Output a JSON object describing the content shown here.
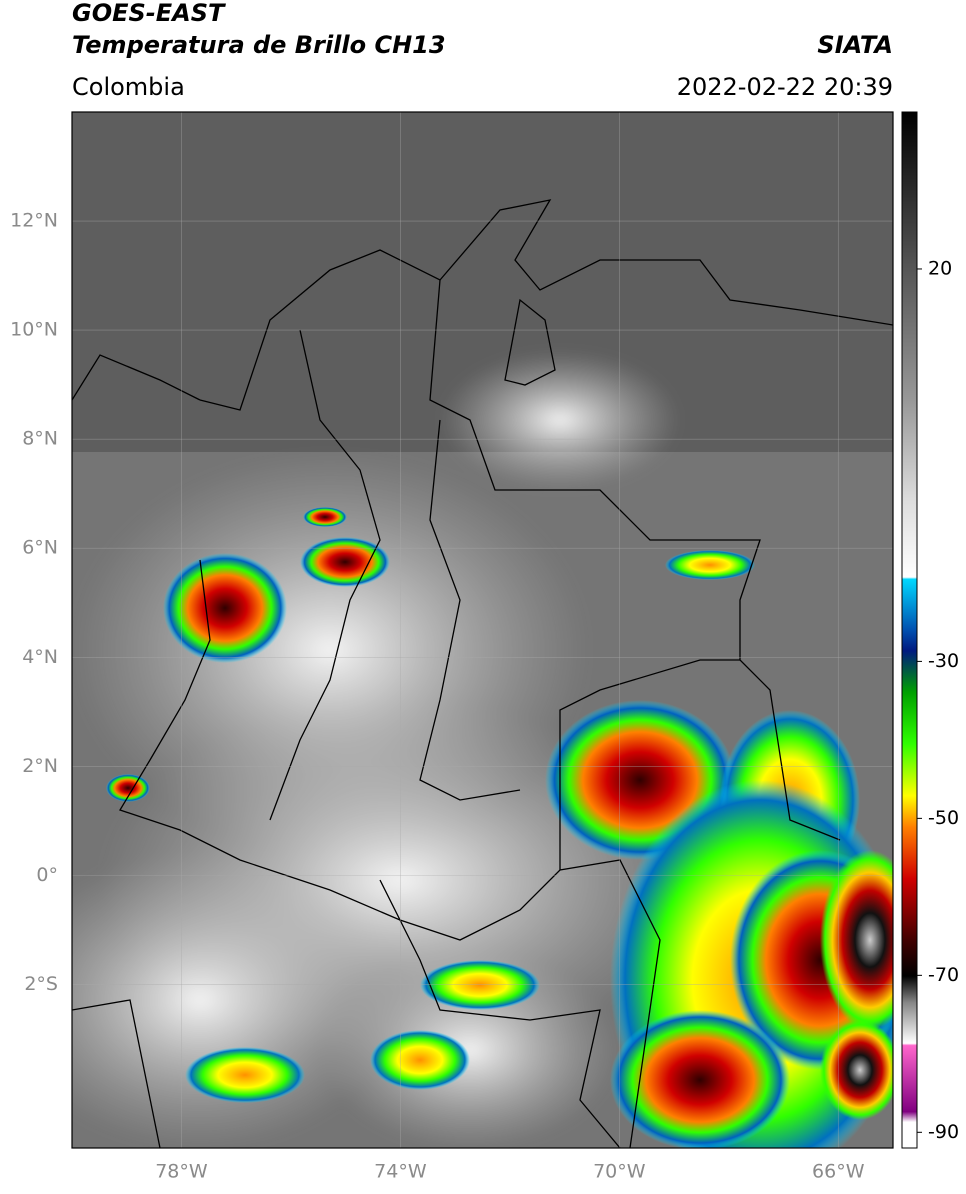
{
  "header": {
    "title": "GOES-EAST",
    "subtitle": "Temperatura de Brillo CH13",
    "source": "SIATA",
    "region": "Colombia",
    "datetime": "2022-02-22 20:39"
  },
  "map": {
    "lon_range": [
      -80,
      -65
    ],
    "lat_range": [
      -5,
      14
    ],
    "lon_ticks": [
      {
        "value": -78,
        "label": "78°W"
      },
      {
        "value": -74,
        "label": "74°W"
      },
      {
        "value": -70,
        "label": "70°W"
      },
      {
        "value": -66,
        "label": "66°W"
      }
    ],
    "lat_ticks": [
      {
        "value": 12,
        "label": "12°N"
      },
      {
        "value": 10,
        "label": "10°N"
      },
      {
        "value": 8,
        "label": "8°N"
      },
      {
        "value": 6,
        "label": "6°N"
      },
      {
        "value": 4,
        "label": "4°N"
      },
      {
        "value": 2,
        "label": "2°N"
      },
      {
        "value": 0,
        "label": "0°"
      },
      {
        "value": -2,
        "label": "2°S"
      }
    ],
    "grid": true
  },
  "colorbar": {
    "range": [
      -92,
      40
    ],
    "ticks": [
      20,
      -30,
      -50,
      -70,
      -90
    ]
  }
}
